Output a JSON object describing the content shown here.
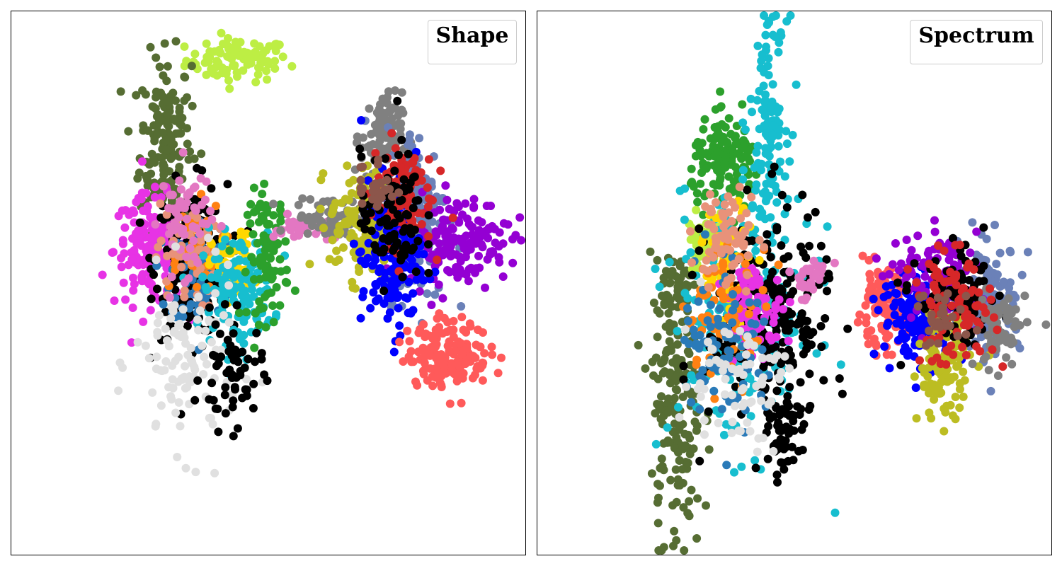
{
  "chart_data": [
    {
      "type": "scatter",
      "title": "Shape",
      "xlabel": "",
      "ylabel": "",
      "grid": false,
      "axis_ticks": false,
      "legend_placement": "top-right",
      "xlim": [
        0,
        100
      ],
      "ylim": [
        0,
        100
      ],
      "clusters": [
        {
          "color": "#bdee44",
          "cx": 44,
          "cy": 91,
          "sx": 5,
          "sy": 2,
          "n": 90
        },
        {
          "color": "#566d33",
          "cx": 30,
          "cy": 76,
          "sx": 2.5,
          "sy": 8,
          "n": 170
        },
        {
          "color": "#e733e5",
          "cx": 27,
          "cy": 56,
          "sx": 3.5,
          "sy": 5,
          "n": 170
        },
        {
          "color": "#000000",
          "cx": 35,
          "cy": 54,
          "sx": 3.5,
          "sy": 7,
          "n": 200
        },
        {
          "color": "#2a7ab8",
          "cx": 37,
          "cy": 52,
          "sx": 3,
          "sy": 5,
          "n": 90
        },
        {
          "color": "#ff8112",
          "cx": 35,
          "cy": 57,
          "sx": 3,
          "sy": 4,
          "n": 50
        },
        {
          "color": "#e8927a",
          "cx": 34,
          "cy": 55,
          "sx": 3,
          "sy": 5,
          "n": 50
        },
        {
          "color": "#ffd700",
          "cx": 43,
          "cy": 53,
          "sx": 2,
          "sy": 3,
          "n": 70
        },
        {
          "color": "#17becf",
          "cx": 44,
          "cy": 49,
          "sx": 3.5,
          "sy": 5,
          "n": 140
        },
        {
          "color": "#2ca02c",
          "cx": 50,
          "cy": 55,
          "sx": 2,
          "sy": 6,
          "n": 90
        },
        {
          "color": "#e377c2",
          "cx": 34,
          "cy": 62,
          "sx": 2.5,
          "sy": 5,
          "n": 60
        },
        {
          "color": "#e377c2",
          "cx": 57,
          "cy": 60,
          "sx": 3,
          "sy": 1.2,
          "n": 40
        },
        {
          "color": "#e0e0e0",
          "cx": 34,
          "cy": 35,
          "sx": 5,
          "sy": 8,
          "n": 110
        },
        {
          "color": "#000000",
          "cx": 43,
          "cy": 33,
          "sx": 3,
          "sy": 5,
          "n": 60
        },
        {
          "color": "#808080",
          "cx": 63,
          "cy": 62,
          "sx": 4,
          "sy": 2,
          "n": 80
        },
        {
          "color": "#808080",
          "cx": 72,
          "cy": 77,
          "sx": 2,
          "sy": 4,
          "n": 90
        },
        {
          "color": "#bcbd22",
          "cx": 68,
          "cy": 61,
          "sx": 3,
          "sy": 5,
          "n": 130
        },
        {
          "color": "#6b81b8",
          "cx": 79,
          "cy": 63,
          "sx": 3,
          "sy": 8,
          "n": 170
        },
        {
          "color": "#9400d3",
          "cx": 87,
          "cy": 58,
          "sx": 5,
          "sy": 4,
          "n": 150
        },
        {
          "color": "#0000ff",
          "cx": 74,
          "cy": 55,
          "sx": 3,
          "sy": 7,
          "n": 170
        },
        {
          "color": "#d62728",
          "cx": 76,
          "cy": 67,
          "sx": 3,
          "sy": 5,
          "n": 90
        },
        {
          "color": "#000000",
          "cx": 74,
          "cy": 62,
          "sx": 3,
          "sy": 6,
          "n": 90
        },
        {
          "color": "#8c564b",
          "cx": 71,
          "cy": 68,
          "sx": 2,
          "sy": 3,
          "n": 30
        },
        {
          "color": "#ff5a5a",
          "cx": 85,
          "cy": 37,
          "sx": 4,
          "sy": 3,
          "n": 170
        }
      ]
    },
    {
      "type": "scatter",
      "title": "Spectrum",
      "xlabel": "",
      "ylabel": "",
      "grid": false,
      "axis_ticks": false,
      "legend_placement": "top-right",
      "xlim": [
        0,
        100
      ],
      "ylim": [
        0,
        100
      ],
      "clusters": [
        {
          "color": "#566d33",
          "cx": 27,
          "cy": 27,
          "sx": 2.5,
          "sy": 13,
          "n": 170
        },
        {
          "color": "#566d33",
          "cx": 27,
          "cy": 49,
          "sx": 1.5,
          "sy": 3,
          "n": 40
        },
        {
          "color": "#2ca02c",
          "cx": 37,
          "cy": 72,
          "sx": 3.5,
          "sy": 4,
          "n": 140
        },
        {
          "color": "#bdee44",
          "cx": 33,
          "cy": 57,
          "sx": 2,
          "sy": 3,
          "n": 60
        },
        {
          "color": "#17becf",
          "cx": 45,
          "cy": 81,
          "sx": 1.8,
          "sy": 9,
          "n": 110
        },
        {
          "color": "#17becf",
          "cx": 40,
          "cy": 44,
          "sx": 7,
          "sy": 12,
          "n": 210
        },
        {
          "color": "#000000",
          "cx": 45,
          "cy": 44,
          "sx": 6,
          "sy": 10,
          "n": 240
        },
        {
          "color": "#000000",
          "cx": 48,
          "cy": 22,
          "sx": 1.5,
          "sy": 4,
          "n": 60
        },
        {
          "color": "#ffd700",
          "cx": 37,
          "cy": 54,
          "sx": 3,
          "sy": 5,
          "n": 60
        },
        {
          "color": "#e733e5",
          "cx": 42,
          "cy": 45,
          "sx": 3,
          "sy": 4,
          "n": 90
        },
        {
          "color": "#ff8112",
          "cx": 37,
          "cy": 45,
          "sx": 4,
          "sy": 6,
          "n": 70
        },
        {
          "color": "#2a7ab8",
          "cx": 36,
          "cy": 40,
          "sx": 4,
          "sy": 8,
          "n": 90
        },
        {
          "color": "#e8927a",
          "cx": 37,
          "cy": 58,
          "sx": 3,
          "sy": 5,
          "n": 70
        },
        {
          "color": "#e0e0e0",
          "cx": 38,
          "cy": 32,
          "sx": 5,
          "sy": 6,
          "n": 70
        },
        {
          "color": "#e377c2",
          "cx": 53,
          "cy": 51,
          "sx": 2,
          "sy": 2,
          "n": 30
        },
        {
          "color": "#ff5a5a",
          "cx": 67,
          "cy": 45,
          "sx": 2.5,
          "sy": 3.5,
          "n": 110
        },
        {
          "color": "#0000ff",
          "cx": 75,
          "cy": 44,
          "sx": 4,
          "sy": 4,
          "n": 170
        },
        {
          "color": "#6b81b8",
          "cx": 88,
          "cy": 47,
          "sx": 3,
          "sy": 5,
          "n": 150
        },
        {
          "color": "#9400d3",
          "cx": 78,
          "cy": 51,
          "sx": 4,
          "sy": 4,
          "n": 110
        },
        {
          "color": "#bcbd22",
          "cx": 79,
          "cy": 35,
          "sx": 2.5,
          "sy": 5,
          "n": 130
        },
        {
          "color": "#000000",
          "cx": 82,
          "cy": 47,
          "sx": 4,
          "sy": 4,
          "n": 90
        },
        {
          "color": "#808080",
          "cx": 90,
          "cy": 42,
          "sx": 2.5,
          "sy": 4,
          "n": 70
        },
        {
          "color": "#d62728",
          "cx": 81,
          "cy": 45,
          "sx": 4,
          "sy": 5,
          "n": 90
        },
        {
          "color": "#8c564b",
          "cx": 79,
          "cy": 43,
          "sx": 3,
          "sy": 3,
          "n": 30
        }
      ]
    }
  ]
}
